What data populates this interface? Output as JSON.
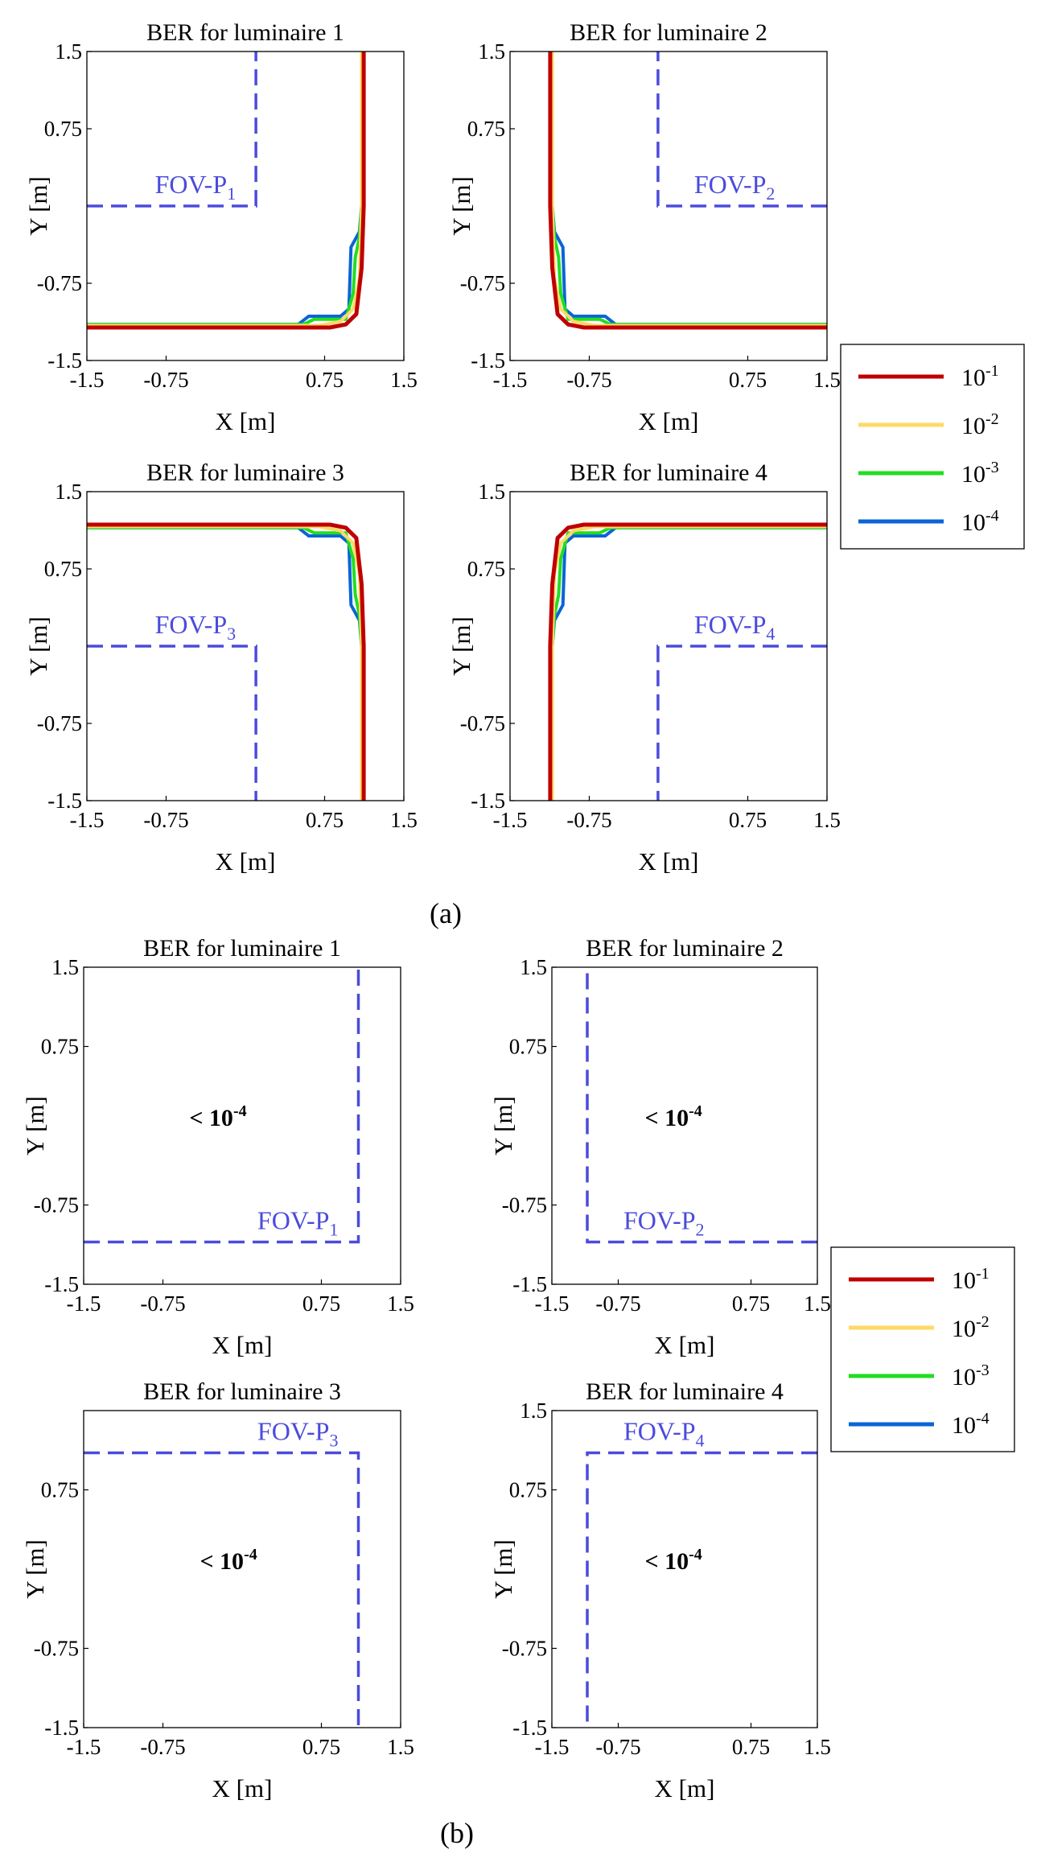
{
  "chart_data": [
    {
      "group": "(a)",
      "type": "line",
      "title": "BER for luminaire 1",
      "xlabel": "X [m]",
      "ylabel": "Y [m]",
      "xlim": [
        -1.5,
        1.5
      ],
      "ylim": [
        -1.5,
        1.5
      ],
      "xticks": [
        "-1.5",
        "-0.75",
        "0.75",
        "1.5"
      ],
      "yticks": [
        "1.5",
        "0.75",
        "-0.75",
        "-1.5"
      ],
      "fov_label": "FOV-P",
      "fov_sub": "1",
      "fov_boundary": [
        [
          -1.5,
          0.0
        ],
        [
          0.1,
          0.0
        ],
        [
          0.1,
          1.5
        ]
      ],
      "series": [
        {
          "name": "10-1",
          "color": "#c00000",
          "points": [
            [
              -1.5,
              -1.18
            ],
            [
              0.8,
              -1.18
            ],
            [
              0.95,
              -1.15
            ],
            [
              1.05,
              -1.05
            ],
            [
              1.1,
              -0.6
            ],
            [
              1.12,
              0.0
            ],
            [
              1.12,
              1.5
            ]
          ]
        },
        {
          "name": "10-2",
          "color": "#ffd966",
          "points": [
            [
              -1.5,
              -1.16
            ],
            [
              0.7,
              -1.16
            ],
            [
              0.9,
              -1.12
            ],
            [
              1.02,
              -1.0
            ],
            [
              1.08,
              -0.7
            ],
            [
              1.1,
              0.0
            ],
            [
              1.1,
              1.5
            ]
          ]
        },
        {
          "name": "10-3",
          "color": "#22dd22",
          "points": [
            [
              -1.5,
              -1.15
            ],
            [
              0.55,
              -1.15
            ],
            [
              0.65,
              -1.1
            ],
            [
              0.95,
              -1.1
            ],
            [
              1.02,
              -0.85
            ],
            [
              1.04,
              -0.5
            ],
            [
              1.08,
              -0.3
            ],
            [
              1.1,
              0.0
            ],
            [
              1.1,
              1.5
            ]
          ]
        },
        {
          "name": "10-4",
          "color": "#0a64d6",
          "points": [
            [
              -1.5,
              -1.15
            ],
            [
              0.5,
              -1.15
            ],
            [
              0.6,
              -1.07
            ],
            [
              0.9,
              -1.07
            ],
            [
              0.98,
              -1.0
            ],
            [
              1.0,
              -0.4
            ],
            [
              1.08,
              -0.25
            ],
            [
              1.1,
              0.0
            ],
            [
              1.1,
              1.5
            ]
          ]
        }
      ]
    },
    {
      "group": "(a)",
      "type": "line",
      "title": "BER for luminaire 2",
      "xlabel": "X [m]",
      "ylabel": "Y [m]",
      "xlim": [
        -1.5,
        1.5
      ],
      "ylim": [
        -1.5,
        1.5
      ],
      "xticks": [
        "-1.5",
        "-0.75",
        "0.75",
        "1.5"
      ],
      "yticks": [
        "1.5",
        "0.75",
        "-0.75",
        "-1.5"
      ],
      "fov_label": "FOV-P",
      "fov_sub": "2",
      "fov_boundary": [
        [
          1.5,
          0.0
        ],
        [
          -0.1,
          0.0
        ],
        [
          -0.1,
          1.5
        ]
      ],
      "series": [
        {
          "name": "10-1",
          "color": "#c00000",
          "points": [
            [
              1.5,
              -1.18
            ],
            [
              -0.8,
              -1.18
            ],
            [
              -0.95,
              -1.15
            ],
            [
              -1.05,
              -1.05
            ],
            [
              -1.1,
              -0.6
            ],
            [
              -1.12,
              0.0
            ],
            [
              -1.12,
              1.5
            ]
          ]
        },
        {
          "name": "10-2",
          "color": "#ffd966",
          "points": [
            [
              1.5,
              -1.16
            ],
            [
              -0.7,
              -1.16
            ],
            [
              -0.9,
              -1.12
            ],
            [
              -1.02,
              -1.0
            ],
            [
              -1.08,
              -0.7
            ],
            [
              -1.1,
              0.0
            ],
            [
              -1.1,
              1.5
            ]
          ]
        },
        {
          "name": "10-3",
          "color": "#22dd22",
          "points": [
            [
              1.5,
              -1.15
            ],
            [
              -0.55,
              -1.15
            ],
            [
              -0.65,
              -1.1
            ],
            [
              -0.95,
              -1.1
            ],
            [
              -1.02,
              -0.85
            ],
            [
              -1.04,
              -0.5
            ],
            [
              -1.08,
              -0.3
            ],
            [
              -1.1,
              0.0
            ],
            [
              -1.1,
              1.5
            ]
          ]
        },
        {
          "name": "10-4",
          "color": "#0a64d6",
          "points": [
            [
              1.5,
              -1.15
            ],
            [
              -0.5,
              -1.15
            ],
            [
              -0.6,
              -1.07
            ],
            [
              -0.9,
              -1.07
            ],
            [
              -0.98,
              -1.0
            ],
            [
              -1.0,
              -0.4
            ],
            [
              -1.08,
              -0.25
            ],
            [
              -1.1,
              0.0
            ],
            [
              -1.1,
              1.5
            ]
          ]
        }
      ]
    },
    {
      "group": "(a)",
      "type": "line",
      "title": "BER for luminaire 3",
      "xlabel": "X [m]",
      "ylabel": "Y [m]",
      "xlim": [
        -1.5,
        1.5
      ],
      "ylim": [
        -1.5,
        1.5
      ],
      "xticks": [
        "-1.5",
        "-0.75",
        "0.75",
        "1.5"
      ],
      "yticks": [
        "1.5",
        "0.75",
        "-0.75",
        "-1.5"
      ],
      "fov_label": "FOV-P",
      "fov_sub": "3",
      "fov_boundary": [
        [
          -1.5,
          0.0
        ],
        [
          0.1,
          0.0
        ],
        [
          0.1,
          -1.5
        ]
      ],
      "series": [
        {
          "name": "10-1",
          "color": "#c00000",
          "points": [
            [
              -1.5,
              1.18
            ],
            [
              0.8,
              1.18
            ],
            [
              0.95,
              1.15
            ],
            [
              1.05,
              1.05
            ],
            [
              1.1,
              0.6
            ],
            [
              1.12,
              0.0
            ],
            [
              1.12,
              -1.5
            ]
          ]
        },
        {
          "name": "10-2",
          "color": "#ffd966",
          "points": [
            [
              -1.5,
              1.16
            ],
            [
              0.7,
              1.16
            ],
            [
              0.9,
              1.12
            ],
            [
              1.02,
              1.0
            ],
            [
              1.08,
              0.7
            ],
            [
              1.1,
              0.0
            ],
            [
              1.1,
              -1.5
            ]
          ]
        },
        {
          "name": "10-3",
          "color": "#22dd22",
          "points": [
            [
              -1.5,
              1.15
            ],
            [
              0.55,
              1.15
            ],
            [
              0.65,
              1.1
            ],
            [
              0.95,
              1.1
            ],
            [
              1.02,
              0.85
            ],
            [
              1.04,
              0.5
            ],
            [
              1.08,
              0.3
            ],
            [
              1.1,
              0.0
            ],
            [
              1.1,
              -1.5
            ]
          ]
        },
        {
          "name": "10-4",
          "color": "#0a64d6",
          "points": [
            [
              -1.5,
              1.15
            ],
            [
              0.5,
              1.15
            ],
            [
              0.6,
              1.07
            ],
            [
              0.9,
              1.07
            ],
            [
              0.98,
              1.0
            ],
            [
              1.0,
              0.4
            ],
            [
              1.08,
              0.25
            ],
            [
              1.1,
              0.0
            ],
            [
              1.1,
              -1.5
            ]
          ]
        }
      ]
    },
    {
      "group": "(a)",
      "type": "line",
      "title": "BER for luminaire 4",
      "xlabel": "X [m]",
      "ylabel": "Y [m]",
      "xlim": [
        -1.5,
        1.5
      ],
      "ylim": [
        -1.5,
        1.5
      ],
      "xticks": [
        "-1.5",
        "-0.75",
        "0.75",
        "1.5"
      ],
      "yticks": [
        "1.5",
        "0.75",
        "-0.75",
        "-1.5"
      ],
      "fov_label": "FOV-P",
      "fov_sub": "4",
      "fov_boundary": [
        [
          1.5,
          0.0
        ],
        [
          -0.1,
          0.0
        ],
        [
          -0.1,
          -1.5
        ]
      ],
      "series": [
        {
          "name": "10-1",
          "color": "#c00000",
          "points": [
            [
              1.5,
              1.18
            ],
            [
              -0.8,
              1.18
            ],
            [
              -0.95,
              1.15
            ],
            [
              -1.05,
              1.05
            ],
            [
              -1.1,
              0.6
            ],
            [
              -1.12,
              0.0
            ],
            [
              -1.12,
              -1.5
            ]
          ]
        },
        {
          "name": "10-2",
          "color": "#ffd966",
          "points": [
            [
              1.5,
              1.16
            ],
            [
              -0.7,
              1.16
            ],
            [
              -0.9,
              1.12
            ],
            [
              -1.02,
              1.0
            ],
            [
              -1.08,
              0.7
            ],
            [
              -1.1,
              0.0
            ],
            [
              -1.1,
              -1.5
            ]
          ]
        },
        {
          "name": "10-3",
          "color": "#22dd22",
          "points": [
            [
              1.5,
              1.15
            ],
            [
              -0.55,
              1.15
            ],
            [
              -0.65,
              1.1
            ],
            [
              -0.95,
              1.1
            ],
            [
              -1.02,
              0.85
            ],
            [
              -1.04,
              0.5
            ],
            [
              -1.08,
              0.3
            ],
            [
              -1.1,
              0.0
            ],
            [
              -1.1,
              -1.5
            ]
          ]
        },
        {
          "name": "10-4",
          "color": "#0a64d6",
          "points": [
            [
              1.5,
              1.15
            ],
            [
              -0.5,
              1.15
            ],
            [
              -0.6,
              1.07
            ],
            [
              -0.9,
              1.07
            ],
            [
              -0.98,
              1.0
            ],
            [
              -1.0,
              0.4
            ],
            [
              -1.08,
              0.25
            ],
            [
              -1.1,
              0.0
            ],
            [
              -1.1,
              -1.5
            ]
          ]
        }
      ]
    },
    {
      "group": "(b)",
      "type": "line",
      "title": "BER for luminaire 1",
      "xlabel": "X [m]",
      "ylabel": "Y [m]",
      "xlim": [
        -1.5,
        1.5
      ],
      "ylim": [
        -1.5,
        1.5
      ],
      "xticks": [
        "-1.5",
        "-0.75",
        "0.75",
        "1.5"
      ],
      "yticks": [
        "1.5",
        "0.75",
        "-0.75",
        "-1.5"
      ],
      "fov_label": "FOV-P",
      "fov_sub": "1",
      "fov_boundary": [
        [
          -1.5,
          -1.1
        ],
        [
          1.1,
          -1.1
        ],
        [
          1.1,
          1.5
        ]
      ],
      "annotation": "< 10",
      "annotation_sup": "-4",
      "annotation_pos": [
        -0.5,
        0.0
      ],
      "series": []
    },
    {
      "group": "(b)",
      "type": "line",
      "title": "BER for luminaire 2",
      "xlabel": "X [m]",
      "ylabel": "Y [m]",
      "xlim": [
        -1.5,
        1.5
      ],
      "ylim": [
        -1.5,
        1.5
      ],
      "xticks": [
        "-1.5",
        "-0.75",
        "0.75",
        "1.5"
      ],
      "yticks": [
        "1.5",
        "0.75",
        "-0.75",
        "-1.5"
      ],
      "fov_label": "FOV-P",
      "fov_sub": "2",
      "fov_boundary": [
        [
          1.5,
          -1.1
        ],
        [
          -1.1,
          -1.1
        ],
        [
          -1.1,
          1.5
        ]
      ],
      "annotation": "< 10",
      "annotation_sup": "-4",
      "annotation_pos": [
        -0.45,
        0.0
      ],
      "series": []
    },
    {
      "group": "(b)",
      "type": "line",
      "title": "BER for luminaire 3",
      "xlabel": "X [m]",
      "ylabel": "Y [m]",
      "xlim": [
        -1.5,
        1.5
      ],
      "ylim": [
        -1.5,
        1.5
      ],
      "xticks": [
        "-1.5",
        "-0.75",
        "0.75",
        "1.5"
      ],
      "yticks": [
        "0.75",
        "-0.75",
        "-1.5"
      ],
      "fov_label": "FOV-P",
      "fov_sub": "3",
      "fov_boundary": [
        [
          -1.5,
          1.1
        ],
        [
          1.1,
          1.1
        ],
        [
          1.1,
          -1.5
        ]
      ],
      "annotation": "< 10",
      "annotation_sup": "-4",
      "annotation_pos": [
        -0.4,
        0.0
      ],
      "series": []
    },
    {
      "group": "(b)",
      "type": "line",
      "title": "BER for luminaire 4",
      "xlabel": "X [m]",
      "ylabel": "Y [m]",
      "xlim": [
        -1.5,
        1.5
      ],
      "ylim": [
        -1.5,
        1.5
      ],
      "xticks": [
        "-1.5",
        "-0.75",
        "0.75",
        "1.5"
      ],
      "yticks": [
        "1.5",
        "0.75",
        "-0.75",
        "-1.5"
      ],
      "fov_label": "FOV-P",
      "fov_sub": "4",
      "fov_boundary": [
        [
          1.5,
          1.1
        ],
        [
          -1.1,
          1.1
        ],
        [
          -1.1,
          -1.5
        ]
      ],
      "annotation": "< 10",
      "annotation_sup": "-4",
      "annotation_pos": [
        -0.45,
        0.0
      ],
      "series": []
    }
  ],
  "legend": {
    "placement": "right",
    "entries": [
      {
        "base": "10",
        "exp": "-1",
        "color": "#c00000"
      },
      {
        "base": "10",
        "exp": "-2",
        "color": "#ffd966"
      },
      {
        "base": "10",
        "exp": "-3",
        "color": "#22dd22"
      },
      {
        "base": "10",
        "exp": "-4",
        "color": "#0a64d6"
      }
    ]
  },
  "fov_color": "#4b4bdc",
  "subfigure_labels": [
    "(a)",
    "(b)"
  ]
}
